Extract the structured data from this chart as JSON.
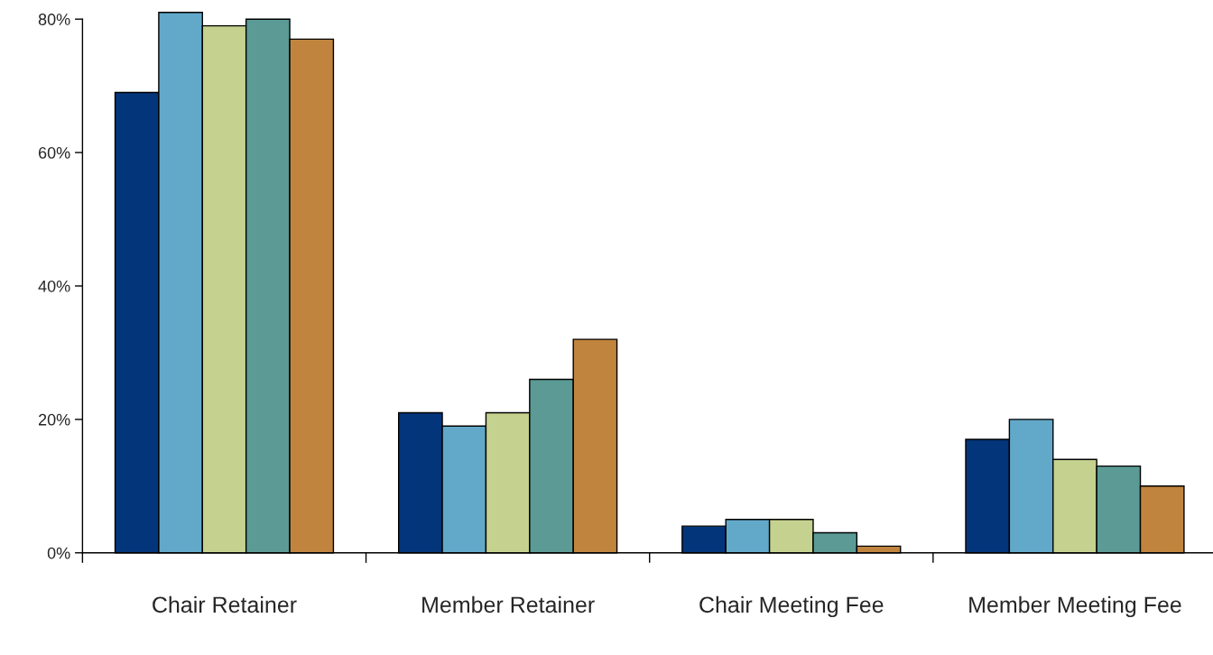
{
  "chart_data": {
    "type": "bar",
    "categories": [
      "Chair Retainer",
      "Member Retainer",
      "Chair Meeting Fee",
      "Member Meeting Fee"
    ],
    "series": [
      {
        "color": "#03357a",
        "values": [
          69,
          21,
          4,
          17
        ]
      },
      {
        "color": "#62a8c8",
        "values": [
          81,
          19,
          5,
          20
        ]
      },
      {
        "color": "#c5d18e",
        "values": [
          79,
          21,
          5,
          14
        ]
      },
      {
        "color": "#5b9a95",
        "values": [
          80,
          26,
          3,
          13
        ]
      },
      {
        "color": "#c0843e",
        "values": [
          77,
          32,
          1,
          10
        ]
      }
    ],
    "ylim": [
      0,
      81
    ],
    "yticks": [
      {
        "value": 0,
        "label": "0%"
      },
      {
        "value": 20,
        "label": "20%"
      },
      {
        "value": 40,
        "label": "40%"
      },
      {
        "value": 60,
        "label": "60%"
      },
      {
        "value": 80,
        "label": "80%"
      }
    ],
    "grid": false,
    "legend": false
  }
}
